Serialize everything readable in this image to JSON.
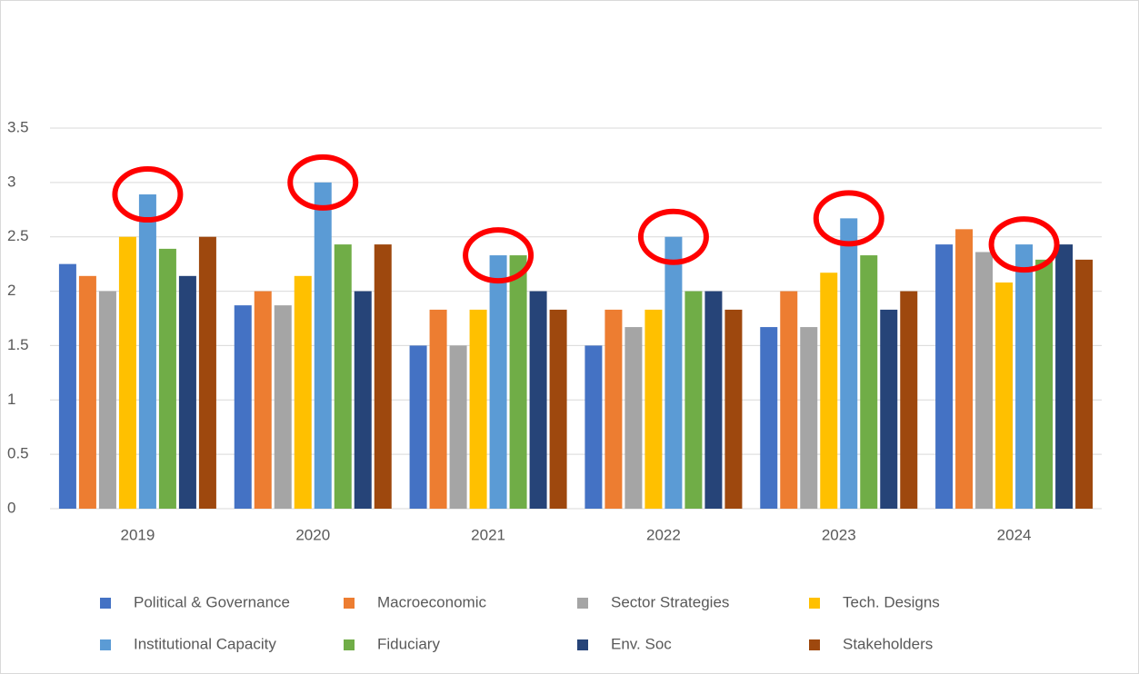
{
  "chart_data": {
    "type": "bar",
    "categories": [
      "2019",
      "2020",
      "2021",
      "2022",
      "2023",
      "2024"
    ],
    "series": [
      {
        "name": "Political & Governance",
        "color": "#4472c4",
        "values": [
          2.25,
          1.87,
          1.5,
          1.5,
          1.67,
          2.43
        ]
      },
      {
        "name": "Macroeconomic",
        "color": "#ed7d31",
        "values": [
          2.14,
          2.0,
          1.83,
          1.83,
          2.0,
          2.57
        ]
      },
      {
        "name": "Sector Strategies",
        "color": "#a5a5a5",
        "values": [
          2.0,
          1.87,
          1.5,
          1.67,
          1.67,
          2.36
        ]
      },
      {
        "name": "Tech. Designs",
        "color": "#ffc000",
        "values": [
          2.5,
          2.14,
          1.83,
          1.83,
          2.17,
          2.08
        ]
      },
      {
        "name": "Institutional Capacity",
        "color": "#5b9bd5",
        "values": [
          2.89,
          3.0,
          2.33,
          2.5,
          2.67,
          2.43
        ]
      },
      {
        "name": "Fiduciary",
        "color": "#70ad47",
        "values": [
          2.39,
          2.43,
          2.33,
          2.0,
          2.33,
          2.29
        ]
      },
      {
        "name": "Env. Soc",
        "color": "#264478",
        "values": [
          2.14,
          2.0,
          2.0,
          2.0,
          1.83,
          2.43
        ]
      },
      {
        "name": "Stakeholders",
        "color": "#9e480e",
        "values": [
          2.5,
          2.43,
          1.83,
          1.83,
          2.0,
          2.29
        ]
      }
    ],
    "ylim": [
      0,
      3.5
    ],
    "yticks": [
      0,
      0.5,
      1,
      1.5,
      2,
      2.5,
      3,
      3.5
    ],
    "grid": true
  }
}
